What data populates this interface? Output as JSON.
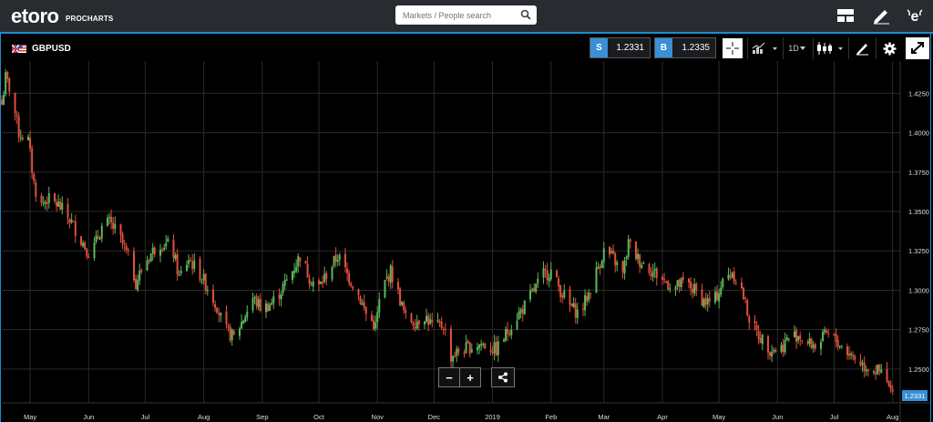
{
  "header": {
    "logo_text": "etoro",
    "logo_sub": "PROCHARTS",
    "search_placeholder": "Markets / People search"
  },
  "toolbar": {
    "symbol": "GBPUSD",
    "sell_label": "S",
    "sell_price": "1.2331",
    "buy_label": "B",
    "buy_price": "1.2335",
    "interval": "1D"
  },
  "colors": {
    "up": "#5cb85c",
    "down": "#e0503c",
    "accent": "#1b8fcf",
    "price_tag": "#3a8fd6"
  },
  "chart_data": {
    "type": "candlestick",
    "series_name": "GBPUSD",
    "interval": "1D",
    "ylim": [
      1.2285,
      1.4455
    ],
    "yticks": [
      1.425,
      1.4,
      1.375,
      1.35,
      1.325,
      1.3,
      1.275,
      1.25
    ],
    "ytick_labels": [
      "1.4250",
      "1.4000",
      "1.3750",
      "1.3500",
      "1.3250",
      "1.3000",
      "1.2750",
      "1.2500"
    ],
    "current_price": "1.2331",
    "current_value": 1.2331,
    "xlim": [
      "2018-04-16",
      "2019-08-05"
    ],
    "months": [
      {
        "label": "May",
        "date": "2018-05-01"
      },
      {
        "label": "Jun",
        "date": "2018-06-01"
      },
      {
        "label": "Jul",
        "date": "2018-07-01"
      },
      {
        "label": "Aug",
        "date": "2018-08-01"
      },
      {
        "label": "Sep",
        "date": "2018-09-01"
      },
      {
        "label": "Oct",
        "date": "2018-10-01"
      },
      {
        "label": "Nov",
        "date": "2018-11-01"
      },
      {
        "label": "Dec",
        "date": "2018-12-01"
      },
      {
        "label": "2019",
        "date": "2019-01-01"
      },
      {
        "label": "Feb",
        "date": "2019-02-01"
      },
      {
        "label": "Mar",
        "date": "2019-03-01"
      },
      {
        "label": "Apr",
        "date": "2019-04-01"
      },
      {
        "label": "May",
        "date": "2019-05-01"
      },
      {
        "label": "Jun",
        "date": "2019-06-01"
      },
      {
        "label": "Jul",
        "date": "2019-07-01"
      },
      {
        "label": "Aug",
        "date": "2019-08-01"
      }
    ],
    "close_path": [
      [
        "2018-04-16",
        1.418
      ],
      [
        "2018-04-18",
        1.435
      ],
      [
        "2018-04-21",
        1.425
      ],
      [
        "2018-04-25",
        1.4
      ],
      [
        "2018-04-30",
        1.395
      ],
      [
        "2018-05-03",
        1.368
      ],
      [
        "2018-05-06",
        1.353
      ],
      [
        "2018-05-10",
        1.358
      ],
      [
        "2018-05-16",
        1.354
      ],
      [
        "2018-05-22",
        1.345
      ],
      [
        "2018-05-29",
        1.33
      ],
      [
        "2018-06-02",
        1.322
      ],
      [
        "2018-06-08",
        1.34
      ],
      [
        "2018-06-12",
        1.343
      ],
      [
        "2018-06-17",
        1.335
      ],
      [
        "2018-06-23",
        1.318
      ],
      [
        "2018-06-26",
        1.305
      ],
      [
        "2018-07-01",
        1.318
      ],
      [
        "2018-07-05",
        1.325
      ],
      [
        "2018-07-09",
        1.33
      ],
      [
        "2018-07-15",
        1.328
      ],
      [
        "2018-07-19",
        1.308
      ],
      [
        "2018-07-24",
        1.32
      ],
      [
        "2018-07-29",
        1.312
      ],
      [
        "2018-08-03",
        1.302
      ],
      [
        "2018-08-08",
        1.29
      ],
      [
        "2018-08-12",
        1.275
      ],
      [
        "2018-08-17",
        1.27
      ],
      [
        "2018-08-22",
        1.282
      ],
      [
        "2018-08-27",
        1.295
      ],
      [
        "2018-09-01",
        1.288
      ],
      [
        "2018-09-06",
        1.292
      ],
      [
        "2018-09-11",
        1.3
      ],
      [
        "2018-09-16",
        1.31
      ],
      [
        "2018-09-21",
        1.322
      ],
      [
        "2018-09-26",
        1.308
      ],
      [
        "2018-10-01",
        1.302
      ],
      [
        "2018-10-06",
        1.312
      ],
      [
        "2018-10-11",
        1.322
      ],
      [
        "2018-10-16",
        1.31
      ],
      [
        "2018-10-21",
        1.3
      ],
      [
        "2018-10-26",
        1.285
      ],
      [
        "2018-10-31",
        1.277
      ],
      [
        "2018-11-03",
        1.3
      ],
      [
        "2018-11-08",
        1.312
      ],
      [
        "2018-11-12",
        1.298
      ],
      [
        "2018-11-16",
        1.282
      ],
      [
        "2018-11-21",
        1.28
      ],
      [
        "2018-11-26",
        1.284
      ],
      [
        "2018-12-01",
        1.276
      ],
      [
        "2018-12-06",
        1.278
      ],
      [
        "2018-12-10",
        1.258
      ],
      [
        "2018-12-14",
        1.261
      ],
      [
        "2018-12-20",
        1.264
      ],
      [
        "2018-12-26",
        1.266
      ],
      [
        "2019-01-03",
        1.262
      ],
      [
        "2019-01-08",
        1.272
      ],
      [
        "2019-01-13",
        1.282
      ],
      [
        "2019-01-18",
        1.29
      ],
      [
        "2019-01-23",
        1.3
      ],
      [
        "2019-01-28",
        1.31
      ],
      [
        "2019-02-01",
        1.312
      ],
      [
        "2019-02-06",
        1.3
      ],
      [
        "2019-02-11",
        1.29
      ],
      [
        "2019-02-16",
        1.285
      ],
      [
        "2019-02-21",
        1.298
      ],
      [
        "2019-02-26",
        1.315
      ],
      [
        "2019-03-01",
        1.325
      ],
      [
        "2019-03-06",
        1.32
      ],
      [
        "2019-03-11",
        1.31
      ],
      [
        "2019-03-14",
        1.33
      ],
      [
        "2019-03-19",
        1.32
      ],
      [
        "2019-03-24",
        1.315
      ],
      [
        "2019-03-29",
        1.31
      ],
      [
        "2019-04-03",
        1.305
      ],
      [
        "2019-04-08",
        1.302
      ],
      [
        "2019-04-13",
        1.305
      ],
      [
        "2019-04-18",
        1.3
      ],
      [
        "2019-04-23",
        1.293
      ],
      [
        "2019-04-28",
        1.292
      ],
      [
        "2019-05-03",
        1.305
      ],
      [
        "2019-05-08",
        1.312
      ],
      [
        "2019-05-13",
        1.3
      ],
      [
        "2019-05-18",
        1.278
      ],
      [
        "2019-05-23",
        1.27
      ],
      [
        "2019-05-28",
        1.263
      ],
      [
        "2019-06-02",
        1.262
      ],
      [
        "2019-06-07",
        1.27
      ],
      [
        "2019-06-12",
        1.272
      ],
      [
        "2019-06-17",
        1.266
      ],
      [
        "2019-06-22",
        1.265
      ],
      [
        "2019-06-27",
        1.272
      ],
      [
        "2019-07-02",
        1.268
      ],
      [
        "2019-07-07",
        1.262
      ],
      [
        "2019-07-12",
        1.257
      ],
      [
        "2019-07-17",
        1.252
      ],
      [
        "2019-07-22",
        1.25
      ],
      [
        "2019-07-27",
        1.246
      ],
      [
        "2019-08-01",
        1.233
      ]
    ]
  }
}
